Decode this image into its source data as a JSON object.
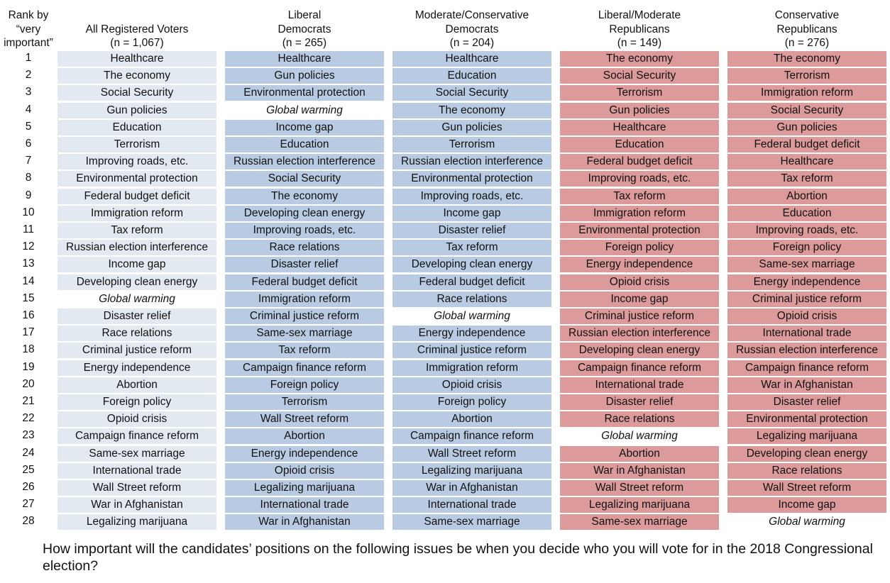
{
  "chart_data": {
    "type": "table",
    "question": "How important will the candidates’ positions on the following issues be when you decide who you will vote for in the 2018 Congressional election?",
    "rank_header": [
      "Rank by",
      "“very",
      "important”"
    ],
    "ranks": [
      1,
      2,
      3,
      4,
      5,
      6,
      7,
      8,
      9,
      10,
      11,
      12,
      13,
      14,
      15,
      16,
      17,
      18,
      19,
      20,
      21,
      22,
      23,
      24,
      25,
      26,
      27,
      28
    ],
    "columns": [
      {
        "header": [
          "All Registered Voters",
          "(n = 1,067)"
        ],
        "color": "#e3e9f1",
        "items": [
          "Healthcare",
          "The economy",
          "Social Security",
          "Gun policies",
          "Education",
          "Terrorism",
          "Improving roads, etc.",
          "Environmental protection",
          "Federal budget deficit",
          "Immigration reform",
          "Tax reform",
          "Russian election interference",
          "Income gap",
          "Developing clean energy",
          "Global warming",
          "Disaster relief",
          "Race relations",
          "Criminal justice reform",
          "Energy independence",
          "Abortion",
          "Foreign policy",
          "Opioid crisis",
          "Campaign finance reform",
          "Same-sex marriage",
          "International trade",
          "Wall Street reform",
          "War in Afghanistan",
          "Legalizing marijuana"
        ]
      },
      {
        "header": [
          "Liberal",
          "Democrats",
          "(n = 265)"
        ],
        "color": "#b9cbe2",
        "items": [
          "Healthcare",
          "Gun policies",
          "Environmental protection",
          "Global warming",
          "Income gap",
          "Education",
          "Russian election interference",
          "Social Security",
          "The economy",
          "Developing clean energy",
          "Improving roads, etc.",
          "Race relations",
          "Disaster relief",
          "Federal budget deficit",
          "Immigration reform",
          "Criminal justice reform",
          "Same-sex marriage",
          "Tax reform",
          "Campaign finance reform",
          "Foreign policy",
          "Terrorism",
          "Wall Street reform",
          "Abortion",
          "Energy independence",
          "Opioid crisis",
          "Legalizing marijuana",
          "International trade",
          "War in Afghanistan"
        ]
      },
      {
        "header": [
          "Moderate/Conservative",
          "Democrats",
          "(n = 204)"
        ],
        "color": "#b9cbe2",
        "items": [
          "Healthcare",
          "Education",
          "Social Security",
          "The economy",
          "Gun policies",
          "Terrorism",
          "Russian election interference",
          "Environmental protection",
          "Improving roads, etc.",
          "Income gap",
          "Disaster relief",
          "Tax reform",
          "Developing clean energy",
          "Federal budget deficit",
          "Race relations",
          "Global warming",
          "Energy independence",
          "Criminal justice reform",
          "Immigration reform",
          "Opioid crisis",
          "Foreign policy",
          "Abortion",
          "Campaign finance reform",
          "Wall Street reform",
          "Legalizing marijuana",
          "War in Afghanistan",
          "International trade",
          "Same-sex marriage"
        ]
      },
      {
        "header": [
          "Liberal/Moderate",
          "Republicans",
          "(n = 149)"
        ],
        "color": "#dc9a9a",
        "items": [
          "The economy",
          "Social Security",
          "Terrorism",
          "Gun policies",
          "Healthcare",
          "Education",
          "Federal budget deficit",
          "Improving roads, etc.",
          "Tax reform",
          "Immigration reform",
          "Environmental protection",
          "Foreign policy",
          "Energy independence",
          "Opioid crisis",
          "Income gap",
          "Criminal justice reform",
          "Russian election interference",
          "Developing clean energy",
          "Campaign finance reform",
          "International trade",
          "Disaster relief",
          "Race relations",
          "Global warming",
          "Abortion",
          "War in Afghanistan",
          "Wall Street reform",
          "Legalizing marijuana",
          "Same-sex marriage"
        ]
      },
      {
        "header": [
          "Conservative",
          "Republicans",
          "(n = 276)"
        ],
        "color": "#dc9a9a",
        "items": [
          "The economy",
          "Terrorism",
          "Immigration reform",
          "Social Security",
          "Gun policies",
          "Federal budget deficit",
          "Healthcare",
          "Tax reform",
          "Abortion",
          "Education",
          "Improving roads, etc.",
          "Foreign policy",
          "Same-sex marriage",
          "Energy independence",
          "Criminal justice reform",
          "Opioid crisis",
          "International trade",
          "Russian election interference",
          "Campaign finance reform",
          "War in Afghanistan",
          "Disaster relief",
          "Environmental protection",
          "Legalizing marijuana",
          "Developing clean energy",
          "Race relations",
          "Wall Street reform",
          "Income gap",
          "Global warming"
        ]
      }
    ],
    "unshaded_item": "Global warming"
  }
}
